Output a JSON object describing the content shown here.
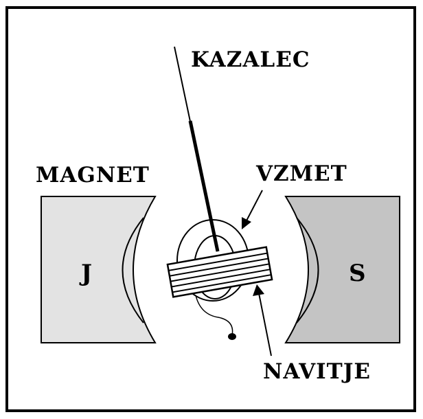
{
  "labels": {
    "pointer": "KAZALEC",
    "magnet": "MAGNET",
    "spring": "VZMET",
    "coil": "NAVITJE",
    "pole_left": "J",
    "pole_right": "S"
  },
  "colors": {
    "frame": "#000000",
    "background": "#ffffff",
    "pole_left_fill": "#e3e3e3",
    "pole_right_fill": "#c4c4c4",
    "ink": "#000000"
  }
}
